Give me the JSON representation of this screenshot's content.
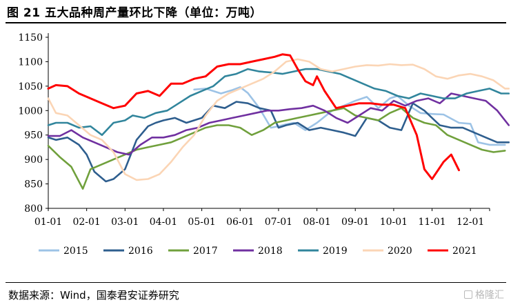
{
  "title": "图 21 五大品种周产量环比下降（单位：万吨）",
  "source": "数据来源：Wind，国泰君安证券研究",
  "watermark": "格隆汇",
  "chart_data": {
    "type": "line",
    "title": "图 21 五大品种周产量环比下降（单位：万吨）",
    "xlabel": "",
    "ylabel": "",
    "ylim": [
      800,
      1150
    ],
    "yticks": [
      800,
      850,
      900,
      950,
      1000,
      1050,
      1100,
      1150
    ],
    "xlim": [
      0,
      11.5
    ],
    "xticks": [
      "01-01",
      "02-01",
      "03-01",
      "04-01",
      "05-01",
      "06-01",
      "07-01",
      "08-01",
      "09-01",
      "10-01",
      "11-01",
      "12-01"
    ],
    "grid": false,
    "legend_position": "bottom",
    "series": [
      {
        "name": "2015",
        "color": "#9dc3e6",
        "x": [
          3.8,
          4.1,
          4.5,
          4.8,
          5.0,
          5.2,
          5.5,
          5.8,
          6.0,
          6.2,
          6.4,
          6.7,
          7.0,
          7.4,
          7.7,
          8.0,
          8.3,
          8.6,
          8.9,
          9.1,
          9.4,
          9.7,
          10.0,
          10.3,
          10.7,
          11.0,
          11.2,
          11.5,
          11.9
        ],
        "y": [
          1043,
          1045,
          1035,
          1042,
          1048,
          1036,
          1005,
          965,
          968,
          972,
          975,
          960,
          975,
          1000,
          1010,
          1020,
          1028,
          1005,
          1025,
          1030,
          1010,
          995,
          993,
          992,
          975,
          973,
          935,
          930,
          930
        ]
      },
      {
        "name": "2016",
        "color": "#2e5e8e",
        "x": [
          0,
          0.2,
          0.5,
          0.8,
          1.0,
          1.2,
          1.5,
          1.7,
          2.0,
          2.3,
          2.6,
          2.8,
          3.0,
          3.3,
          3.6,
          4.0,
          4.3,
          4.6,
          4.9,
          5.2,
          5.5,
          5.8,
          6.0,
          6.2,
          6.5,
          6.8,
          7.1,
          7.4,
          7.7,
          8.0,
          8.3,
          8.6,
          8.9,
          9.2,
          9.5,
          9.8,
          10.0,
          10.2,
          10.5,
          10.8,
          11.1,
          11.4,
          11.7,
          12.0
        ],
        "y": [
          945,
          940,
          945,
          930,
          910,
          875,
          855,
          860,
          880,
          940,
          968,
          975,
          980,
          985,
          975,
          985,
          1010,
          1005,
          1018,
          1015,
          1005,
          1000,
          965,
          970,
          975,
          960,
          965,
          960,
          955,
          948,
          985,
          980,
          965,
          960,
          1015,
          1000,
          985,
          970,
          965,
          965,
          955,
          945,
          935,
          935
        ]
      },
      {
        "name": "2017",
        "color": "#70a03c",
        "x": [
          0,
          0.3,
          0.6,
          0.9,
          1.1,
          1.4,
          1.7,
          2.0,
          2.3,
          2.6,
          2.9,
          3.2,
          3.5,
          3.8,
          4.1,
          4.4,
          4.7,
          5.0,
          5.3,
          5.6,
          5.9,
          6.2,
          6.5,
          6.8,
          7.1,
          7.4,
          7.7,
          8.0,
          8.3,
          8.6,
          8.9,
          9.2,
          9.5,
          9.8,
          10.1,
          10.4,
          10.7,
          11.0,
          11.3,
          11.6,
          11.9
        ],
        "y": [
          928,
          905,
          885,
          840,
          880,
          890,
          900,
          910,
          920,
          925,
          930,
          935,
          945,
          955,
          965,
          970,
          970,
          965,
          950,
          960,
          975,
          980,
          985,
          990,
          995,
          1000,
          1005,
          990,
          985,
          980,
          995,
          1005,
          985,
          975,
          970,
          950,
          940,
          930,
          920,
          915,
          918
        ]
      },
      {
        "name": "2018",
        "color": "#7030a0",
        "x": [
          0,
          0.3,
          0.6,
          0.9,
          1.2,
          1.5,
          1.8,
          2.1,
          2.4,
          2.7,
          3.0,
          3.3,
          3.6,
          3.9,
          4.2,
          4.5,
          4.8,
          5.1,
          5.4,
          5.7,
          6.0,
          6.3,
          6.6,
          6.9,
          7.2,
          7.5,
          7.8,
          8.1,
          8.4,
          8.7,
          9.0,
          9.3,
          9.6,
          9.9,
          10.2,
          10.5,
          10.8,
          11.1,
          11.4,
          11.7,
          12.0
        ],
        "y": [
          948,
          948,
          960,
          945,
          935,
          925,
          915,
          910,
          930,
          945,
          945,
          950,
          960,
          965,
          975,
          980,
          985,
          990,
          995,
          1000,
          1000,
          1003,
          1005,
          1010,
          1000,
          985,
          975,
          990,
          1005,
          1000,
          1020,
          1010,
          1020,
          1025,
          1015,
          1035,
          1030,
          1025,
          1020,
          1000,
          970
        ]
      },
      {
        "name": "2019",
        "color": "#31859c",
        "x": [
          0,
          0.2,
          0.5,
          0.8,
          1.1,
          1.4,
          1.7,
          2.0,
          2.2,
          2.5,
          2.8,
          3.1,
          3.4,
          3.7,
          4.0,
          4.3,
          4.6,
          4.9,
          5.2,
          5.5,
          5.8,
          6.1,
          6.4,
          6.7,
          7.0,
          7.3,
          7.6,
          7.9,
          8.2,
          8.5,
          8.8,
          9.1,
          9.4,
          9.7,
          10.0,
          10.3,
          10.6,
          10.9,
          11.2,
          11.5,
          11.8,
          12.0
        ],
        "y": [
          970,
          975,
          975,
          965,
          968,
          950,
          975,
          980,
          990,
          985,
          995,
          1000,
          1015,
          1030,
          1040,
          1050,
          1070,
          1075,
          1085,
          1080,
          1078,
          1075,
          1080,
          1085,
          1085,
          1080,
          1075,
          1065,
          1055,
          1045,
          1040,
          1030,
          1025,
          1035,
          1030,
          1025,
          1025,
          1035,
          1040,
          1045,
          1035,
          1035
        ]
      },
      {
        "name": "2020",
        "color": "#fbd5b5",
        "x": [
          0,
          0.2,
          0.5,
          0.8,
          1.1,
          1.4,
          1.7,
          2.0,
          2.3,
          2.6,
          2.9,
          3.2,
          3.5,
          3.8,
          4.1,
          4.4,
          4.7,
          5.0,
          5.3,
          5.6,
          5.9,
          6.2,
          6.5,
          6.8,
          7.1,
          7.4,
          7.7,
          8.0,
          8.3,
          8.6,
          8.9,
          9.2,
          9.5,
          9.8,
          10.1,
          10.4,
          10.7,
          11.0,
          11.3,
          11.6,
          11.9,
          12.0
        ],
        "y": [
          1025,
          995,
          990,
          970,
          950,
          940,
          915,
          870,
          858,
          860,
          870,
          895,
          925,
          950,
          990,
          1020,
          1035,
          1045,
          1055,
          1065,
          1080,
          1100,
          1105,
          1100,
          1085,
          1080,
          1085,
          1090,
          1093,
          1092,
          1095,
          1093,
          1094,
          1085,
          1070,
          1065,
          1072,
          1075,
          1070,
          1062,
          1045,
          1045
        ]
      },
      {
        "name": "2021",
        "color": "#ff0000",
        "x": [
          0,
          0.2,
          0.5,
          0.8,
          1.1,
          1.4,
          1.7,
          2.0,
          2.3,
          2.6,
          2.9,
          3.2,
          3.5,
          3.8,
          4.1,
          4.4,
          4.7,
          5.0,
          5.3,
          5.6,
          5.9,
          6.1,
          6.3,
          6.5,
          6.7,
          6.9,
          7.0,
          7.2,
          7.5,
          7.8,
          8.1,
          8.4,
          8.7,
          9.0,
          9.3,
          9.6,
          9.8,
          10.0,
          10.3,
          10.5,
          10.7
        ],
        "y": [
          1045,
          1052,
          1050,
          1035,
          1025,
          1015,
          1005,
          1010,
          1035,
          1040,
          1030,
          1055,
          1055,
          1065,
          1070,
          1090,
          1095,
          1095,
          1100,
          1105,
          1110,
          1115,
          1113,
          1085,
          1060,
          1052,
          1070,
          1040,
          1005,
          1010,
          1015,
          1015,
          1012,
          1012,
          1005,
          950,
          880,
          860,
          895,
          910,
          878
        ]
      }
    ]
  }
}
